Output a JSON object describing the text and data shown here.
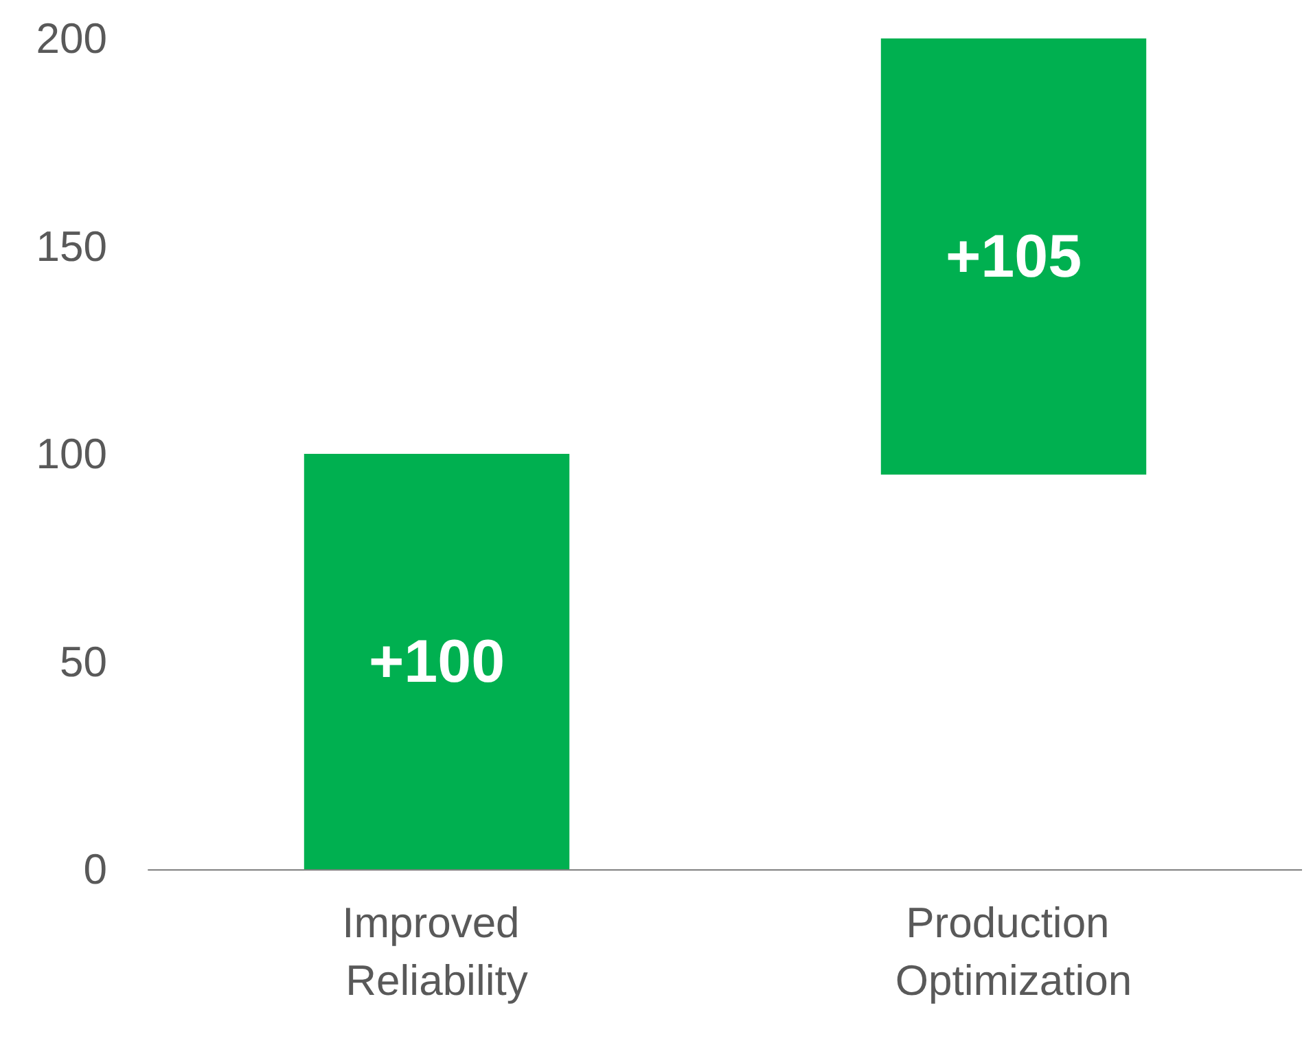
{
  "chart_data": {
    "type": "bar",
    "categories": [
      "Improved Reliability",
      "Production Optimization"
    ],
    "values": [
      100,
      105
    ],
    "base": [
      0,
      95
    ],
    "value_labels": [
      "+100",
      "+105"
    ],
    "color": "#00b050",
    "ylim": [
      0,
      200
    ],
    "yticks": [
      0,
      50,
      100,
      150,
      200
    ],
    "grid": false
  }
}
